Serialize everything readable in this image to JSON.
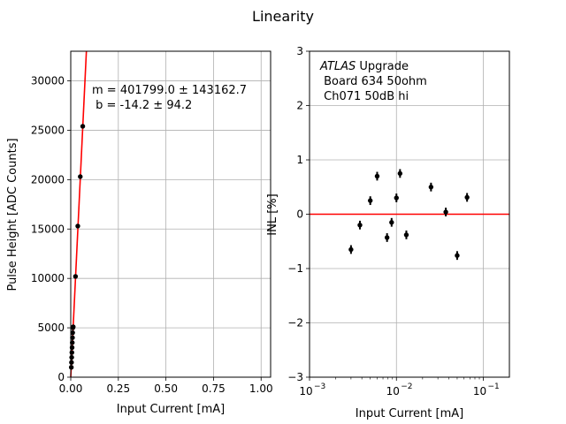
{
  "figure_title": "Linearity",
  "colors": {
    "fit_line": "#ff0000",
    "marker": "#000000",
    "grid": "#b0b0b0",
    "axes": "#000000"
  },
  "chart_data": [
    {
      "type": "scatter",
      "name": "pulse-height-vs-current",
      "xlabel": "Input Current [mA]",
      "ylabel": "Pulse Height [ADC Counts]",
      "xlim": [
        0,
        1.05
      ],
      "ylim": [
        0,
        33000
      ],
      "xscale": "linear",
      "grid": true,
      "x_ticks": [
        0,
        0.25,
        0.5,
        0.75,
        1.0
      ],
      "x_tick_labels": [
        "0.00",
        "0.25",
        "0.50",
        "0.75",
        "1.00"
      ],
      "y_ticks": [
        0,
        5000,
        10000,
        15000,
        20000,
        25000,
        30000
      ],
      "y_tick_labels": [
        "0",
        "5000",
        "10000",
        "15000",
        "20000",
        "25000",
        "30000"
      ],
      "x": [
        0.003,
        0.004,
        0.005,
        0.006,
        0.007,
        0.008,
        0.009,
        0.01,
        0.011,
        0.013,
        0.025,
        0.037,
        0.05,
        0.063
      ],
      "y": [
        1000,
        1500,
        2000,
        2500,
        3000,
        3500,
        4000,
        4500,
        5000,
        5100,
        10200,
        15300,
        20300,
        25400
      ],
      "fit": {
        "slope": 401799.0,
        "intercept": -14.2
      },
      "annotation_lines": [
        "m = 401799.0 ± 143162.7",
        " b = -14.2 ± 94.2"
      ]
    },
    {
      "type": "scatter",
      "name": "inl-vs-current",
      "xlabel": "Input Current [mA]",
      "ylabel": "INL [%]",
      "xscale": "log",
      "xlim_log10": [
        -3,
        -0.7
      ],
      "ylim": [
        -3,
        3
      ],
      "grid": true,
      "x_ticks_exp": [
        -3,
        -2,
        -1
      ],
      "x_tick_labels": [
        "10",
        "10",
        "10"
      ],
      "x_tick_exponents": [
        "−3",
        "−2",
        "−1"
      ],
      "y_ticks": [
        -3,
        -2,
        -1,
        0,
        1,
        2,
        3
      ],
      "y_tick_labels": [
        "−3",
        "−2",
        "−1",
        "0",
        "1",
        "2",
        "3"
      ],
      "x": [
        0.003,
        0.0038,
        0.005,
        0.006,
        0.0078,
        0.0088,
        0.01,
        0.011,
        0.013,
        0.025,
        0.037,
        0.05,
        0.065
      ],
      "y": [
        -0.65,
        -0.2,
        0.25,
        0.7,
        -0.43,
        -0.15,
        0.3,
        0.75,
        -0.38,
        0.5,
        0.04,
        -0.76,
        0.31
      ],
      "yerr": [
        0.08,
        0.08,
        0.08,
        0.08,
        0.08,
        0.08,
        0.08,
        0.08,
        0.08,
        0.08,
        0.08,
        0.08,
        0.08
      ],
      "reference_line_y": 0,
      "annotation_italic": "ATLAS",
      "annotation_lines": [
        " Upgrade",
        " Board 634 50ohm",
        " Ch071 50dB hi"
      ]
    }
  ]
}
